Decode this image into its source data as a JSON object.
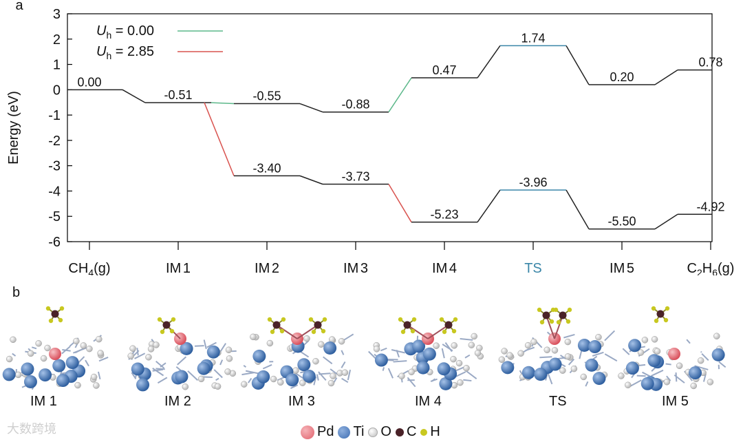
{
  "panel_a_label": "a",
  "panel_b_label": "b",
  "chart_data": {
    "type": "line",
    "ylabel": "Energy (eV)",
    "xlabel": "",
    "ylim": [
      -6,
      3
    ],
    "yticks": [
      "3",
      "2",
      "1",
      "0",
      "-1",
      "-2",
      "-3",
      "-4",
      "-5",
      "-6"
    ],
    "categories": [
      "CH4(g)",
      "IM1",
      "IM2",
      "IM3",
      "IM4",
      "TS",
      "IM5",
      "C2H6(g)"
    ],
    "ts_color": "#3a86a8",
    "legend": [
      {
        "symbol": "U",
        "sub": "h",
        "text": " = 0.00",
        "color": "#5cb88a"
      },
      {
        "symbol": "U",
        "sub": "h",
        "text": " = 2.85",
        "color": "#d9534f"
      }
    ],
    "series": [
      {
        "name": "Uh = 0.00",
        "values": [
          0.0,
          -0.51,
          -0.55,
          -0.88,
          0.47,
          1.74,
          0.2,
          0.78
        ],
        "labels": [
          "0.00",
          "-0.51",
          "-0.55",
          "-0.88",
          "0.47",
          "1.74",
          "0.20",
          "0.78"
        ]
      },
      {
        "name": "Uh = 2.85",
        "values": [
          null,
          null,
          -3.4,
          -3.73,
          -5.23,
          -3.96,
          -5.5,
          -4.92
        ],
        "labels": [
          "",
          "",
          "-3.40",
          "-3.73",
          "-5.23",
          "-3.96",
          "-5.50",
          "-4.92"
        ]
      }
    ]
  },
  "panel_b": {
    "structures": [
      "IM 1",
      "IM 2",
      "IM 3",
      "IM 4",
      "TS",
      "IM 5"
    ],
    "legend": [
      {
        "label": "Pd",
        "color": "#e8757d"
      },
      {
        "label": "Ti",
        "color": "#4a7bbf"
      },
      {
        "label": "O",
        "color": "#d9d9d9"
      },
      {
        "label": "C",
        "color": "#4a2228"
      },
      {
        "label": "H",
        "color": "#c8c820"
      }
    ]
  },
  "watermark": "大数跨境"
}
